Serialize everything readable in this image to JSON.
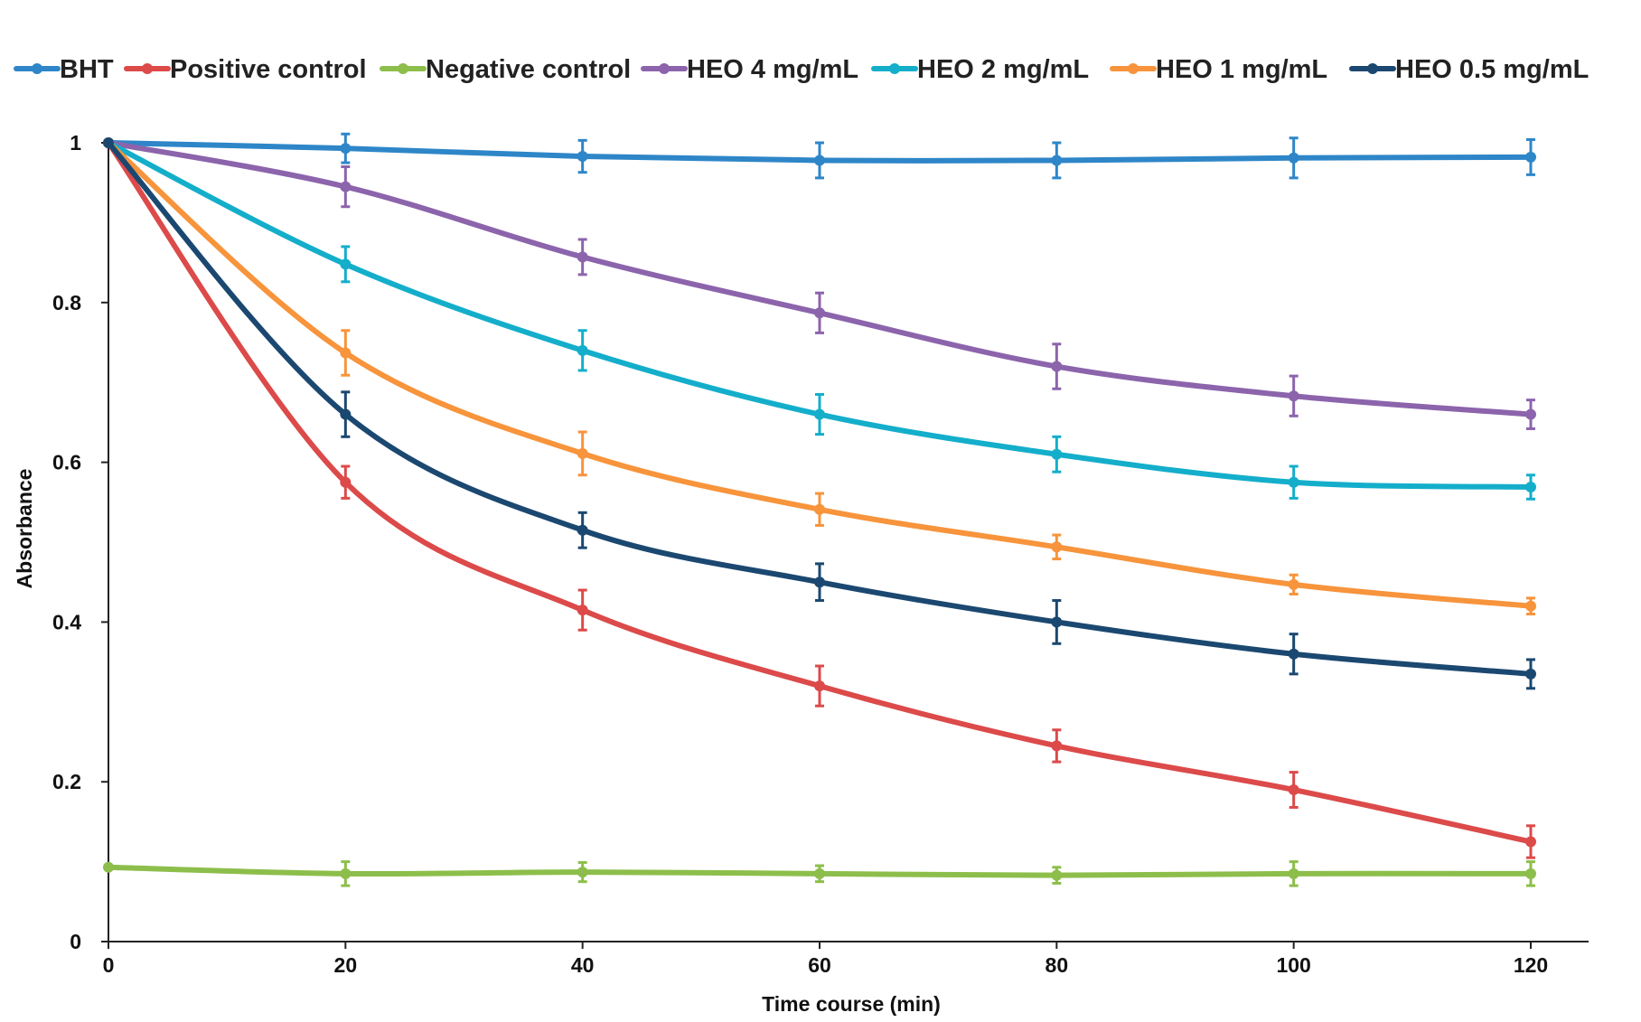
{
  "chart_data": {
    "type": "line",
    "title": "",
    "xlabel": "Time course (min)",
    "ylabel": "Absorbance",
    "x": [
      0,
      20,
      40,
      60,
      80,
      100,
      120
    ],
    "xlim": [
      0,
      125
    ],
    "ylim": [
      0,
      1
    ],
    "x_ticks": [
      "0",
      "20",
      "40",
      "60",
      "80",
      "100",
      "120"
    ],
    "y_ticks": [
      {
        "value": 0,
        "label": "0"
      },
      {
        "value": 0.2,
        "label": "0.2"
      },
      {
        "value": 0.4,
        "label": "0.4"
      },
      {
        "value": 0.6,
        "label": "0.6"
      },
      {
        "value": 0.8,
        "label": "0.8"
      },
      {
        "value": 1,
        "label": "1"
      }
    ],
    "grid": false,
    "legend_position": "top",
    "series": [
      {
        "name": "BHT",
        "color": "#2E86C8",
        "values": [
          1.0,
          0.993,
          0.983,
          0.978,
          0.978,
          0.981,
          0.982
        ],
        "errors": [
          0,
          0.018,
          0.02,
          0.022,
          0.022,
          0.025,
          0.022
        ]
      },
      {
        "name": "Positive control",
        "color": "#DC4A4A",
        "values": [
          1.0,
          0.575,
          0.415,
          0.32,
          0.245,
          0.19,
          0.125
        ],
        "errors": [
          0,
          0.02,
          0.025,
          0.025,
          0.02,
          0.022,
          0.02
        ]
      },
      {
        "name": "Negative control",
        "color": "#8DBE4B",
        "values": [
          0.093,
          0.085,
          0.087,
          0.085,
          0.083,
          0.085,
          0.085
        ],
        "errors": [
          0,
          0.015,
          0.012,
          0.01,
          0.01,
          0.015,
          0.015
        ]
      },
      {
        "name": "HEO 4 mg/mL",
        "color": "#8C64AC",
        "values": [
          1.0,
          0.945,
          0.857,
          0.787,
          0.72,
          0.683,
          0.66
        ],
        "errors": [
          0,
          0.025,
          0.022,
          0.025,
          0.028,
          0.025,
          0.018
        ]
      },
      {
        "name": "HEO 2 mg/mL",
        "color": "#14AECB",
        "values": [
          1.0,
          0.848,
          0.74,
          0.66,
          0.61,
          0.575,
          0.569
        ],
        "errors": [
          0,
          0.022,
          0.025,
          0.025,
          0.022,
          0.02,
          0.015
        ]
      },
      {
        "name": "HEO 1 mg/mL",
        "color": "#F7943C",
        "values": [
          1.0,
          0.737,
          0.611,
          0.541,
          0.494,
          0.447,
          0.42
        ],
        "errors": [
          0,
          0.028,
          0.027,
          0.02,
          0.015,
          0.012,
          0.01
        ]
      },
      {
        "name": "HEO 0.5 mg/mL",
        "color": "#1B4870",
        "values": [
          1.0,
          0.66,
          0.515,
          0.45,
          0.4,
          0.36,
          0.335
        ],
        "errors": [
          0,
          0.028,
          0.022,
          0.023,
          0.027,
          0.025,
          0.018
        ]
      }
    ]
  }
}
